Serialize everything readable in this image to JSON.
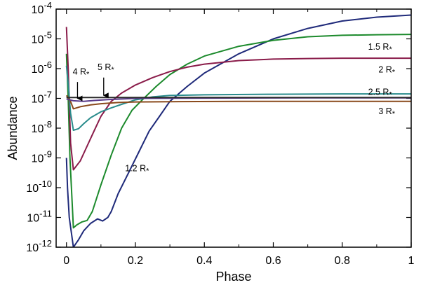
{
  "chart_data": {
    "type": "line",
    "title": "",
    "xlabel": "Phase",
    "ylabel": "Abundance",
    "xscale": "linear",
    "yscale": "log",
    "xlim": [
      -0.03,
      1.0
    ],
    "ylim_log10": [
      -12,
      -4
    ],
    "xticks": [
      {
        "v": 0,
        "label": "0"
      },
      {
        "v": 0.2,
        "label": "0.2"
      },
      {
        "v": 0.4,
        "label": "0.4"
      },
      {
        "v": 0.6,
        "label": "0.6"
      },
      {
        "v": 0.8,
        "label": "0.8"
      },
      {
        "v": 1.0,
        "label": "1"
      }
    ],
    "yticks": [
      {
        "e": -4,
        "base": "10",
        "exp": "-4"
      },
      {
        "e": -5,
        "base": "10",
        "exp": "-5"
      },
      {
        "e": -6,
        "base": "10",
        "exp": "-6"
      },
      {
        "e": -7,
        "base": "10",
        "exp": "-7"
      },
      {
        "e": -8,
        "base": "10",
        "exp": "-8"
      },
      {
        "e": -9,
        "base": "10",
        "exp": "-9"
      },
      {
        "e": -10,
        "base": "10",
        "exp": "-10"
      },
      {
        "e": -11,
        "base": "10",
        "exp": "-11"
      },
      {
        "e": -12,
        "base": "10",
        "exp": "-12"
      }
    ],
    "series": [
      {
        "name": "1.2 R*",
        "label_main": "1.2 R",
        "label_star": "*",
        "color": "#1f2a7a",
        "label_at": [
          0.17,
          -9.45
        ],
        "points": [
          [
            0.0,
            -9.0
          ],
          [
            0.003,
            -10.0
          ],
          [
            0.008,
            -11.0
          ],
          [
            0.02,
            -12.0
          ],
          [
            0.035,
            -11.75
          ],
          [
            0.05,
            -11.45
          ],
          [
            0.07,
            -11.2
          ],
          [
            0.09,
            -11.05
          ],
          [
            0.105,
            -11.12
          ],
          [
            0.12,
            -11.0
          ],
          [
            0.13,
            -10.8
          ],
          [
            0.15,
            -10.2
          ],
          [
            0.18,
            -9.5
          ],
          [
            0.21,
            -8.8
          ],
          [
            0.24,
            -8.1
          ],
          [
            0.27,
            -7.6
          ],
          [
            0.3,
            -7.1
          ],
          [
            0.35,
            -6.6
          ],
          [
            0.4,
            -6.15
          ],
          [
            0.5,
            -5.5
          ],
          [
            0.6,
            -5.0
          ],
          [
            0.7,
            -4.65
          ],
          [
            0.8,
            -4.4
          ],
          [
            0.9,
            -4.27
          ],
          [
            1.0,
            -4.2
          ]
        ]
      },
      {
        "name": "1.5 R*",
        "label_main": "1.5 R",
        "label_star": "*",
        "color": "#1c8a2c",
        "label_at": [
          0.875,
          -5.37
        ],
        "points": [
          [
            0.0,
            -5.5
          ],
          [
            0.005,
            -7.0
          ],
          [
            0.01,
            -9.0
          ],
          [
            0.02,
            -11.35
          ],
          [
            0.03,
            -11.25
          ],
          [
            0.045,
            -11.15
          ],
          [
            0.06,
            -11.1
          ],
          [
            0.075,
            -10.8
          ],
          [
            0.1,
            -9.9
          ],
          [
            0.13,
            -8.9
          ],
          [
            0.16,
            -8.0
          ],
          [
            0.19,
            -7.4
          ],
          [
            0.22,
            -7.05
          ],
          [
            0.26,
            -6.6
          ],
          [
            0.3,
            -6.2
          ],
          [
            0.35,
            -5.85
          ],
          [
            0.4,
            -5.58
          ],
          [
            0.5,
            -5.25
          ],
          [
            0.6,
            -5.05
          ],
          [
            0.7,
            -4.93
          ],
          [
            0.8,
            -4.88
          ],
          [
            0.9,
            -4.86
          ],
          [
            1.0,
            -4.85
          ]
        ]
      },
      {
        "name": "2 R*",
        "label_main": "2 R",
        "label_star": "*",
        "color": "#8a1c4a",
        "label_at": [
          0.905,
          -6.13
        ],
        "points": [
          [
            0.0,
            -4.6
          ],
          [
            0.005,
            -6.0
          ],
          [
            0.012,
            -8.5
          ],
          [
            0.02,
            -9.4
          ],
          [
            0.04,
            -9.1
          ],
          [
            0.06,
            -8.6
          ],
          [
            0.08,
            -8.1
          ],
          [
            0.1,
            -7.6
          ],
          [
            0.13,
            -7.1
          ],
          [
            0.16,
            -6.82
          ],
          [
            0.2,
            -6.55
          ],
          [
            0.25,
            -6.3
          ],
          [
            0.3,
            -6.1
          ],
          [
            0.35,
            -5.95
          ],
          [
            0.4,
            -5.85
          ],
          [
            0.5,
            -5.73
          ],
          [
            0.6,
            -5.68
          ],
          [
            0.7,
            -5.66
          ],
          [
            0.8,
            -5.65
          ],
          [
            0.9,
            -5.65
          ],
          [
            1.0,
            -5.65
          ]
        ]
      },
      {
        "name": "2.5 R*",
        "label_main": "2.5 R",
        "label_star": "*",
        "color": "#2a8c8c",
        "label_at": [
          0.875,
          -6.88
        ],
        "points": [
          [
            0.0,
            -5.9
          ],
          [
            0.005,
            -6.5
          ],
          [
            0.012,
            -7.5
          ],
          [
            0.02,
            -8.07
          ],
          [
            0.035,
            -8.02
          ],
          [
            0.05,
            -7.85
          ],
          [
            0.07,
            -7.65
          ],
          [
            0.1,
            -7.45
          ],
          [
            0.13,
            -7.32
          ],
          [
            0.16,
            -7.2
          ],
          [
            0.2,
            -7.05
          ],
          [
            0.25,
            -6.95
          ],
          [
            0.3,
            -6.9
          ],
          [
            0.4,
            -6.88
          ],
          [
            0.6,
            -6.86
          ],
          [
            0.8,
            -6.85
          ],
          [
            1.0,
            -6.85
          ]
        ]
      },
      {
        "name": "3 R*",
        "label_main": "3 R",
        "label_star": "*",
        "color": "#8a4a1c",
        "label_at": [
          0.905,
          -7.53
        ],
        "points": [
          [
            0.0,
            -6.9
          ],
          [
            0.01,
            -7.05
          ],
          [
            0.02,
            -7.35
          ],
          [
            0.04,
            -7.28
          ],
          [
            0.07,
            -7.22
          ],
          [
            0.1,
            -7.18
          ],
          [
            0.15,
            -7.14
          ],
          [
            0.2,
            -7.12
          ],
          [
            0.3,
            -7.11
          ],
          [
            0.5,
            -7.1
          ],
          [
            0.7,
            -7.1
          ],
          [
            1.0,
            -7.1
          ]
        ]
      },
      {
        "name": "4 R*",
        "label_main": "",
        "label_star": "",
        "color": "#5a3a8a",
        "label_at": null,
        "points": [
          [
            0.0,
            -7.02
          ],
          [
            0.02,
            -7.08
          ],
          [
            0.05,
            -7.1
          ],
          [
            0.08,
            -7.07
          ],
          [
            0.12,
            -7.04
          ],
          [
            0.2,
            -7.0
          ],
          [
            0.4,
            -6.99
          ],
          [
            0.7,
            -6.98
          ],
          [
            1.0,
            -6.98
          ]
        ]
      },
      {
        "name": "5 R*",
        "label_main": "",
        "label_star": "",
        "color": "#2a2a2a",
        "label_at": null,
        "points": [
          [
            0.0,
            -6.97
          ],
          [
            0.2,
            -6.97
          ],
          [
            0.5,
            -6.97
          ],
          [
            1.0,
            -6.97
          ]
        ]
      }
    ],
    "annotations": [
      {
        "id": "4r",
        "main": "4 R",
        "star": "*",
        "text_at": [
          0.018,
          -6.2
        ],
        "arrow_from": [
          0.032,
          -6.45
        ],
        "arrow_to": [
          0.032,
          -7.0
        ]
      },
      {
        "id": "5r",
        "main": "5 R",
        "star": "*",
        "text_at": [
          0.09,
          -6.05
        ],
        "arrow_from": [
          0.108,
          -6.3
        ],
        "arrow_to": [
          0.108,
          -6.9
        ]
      }
    ]
  }
}
